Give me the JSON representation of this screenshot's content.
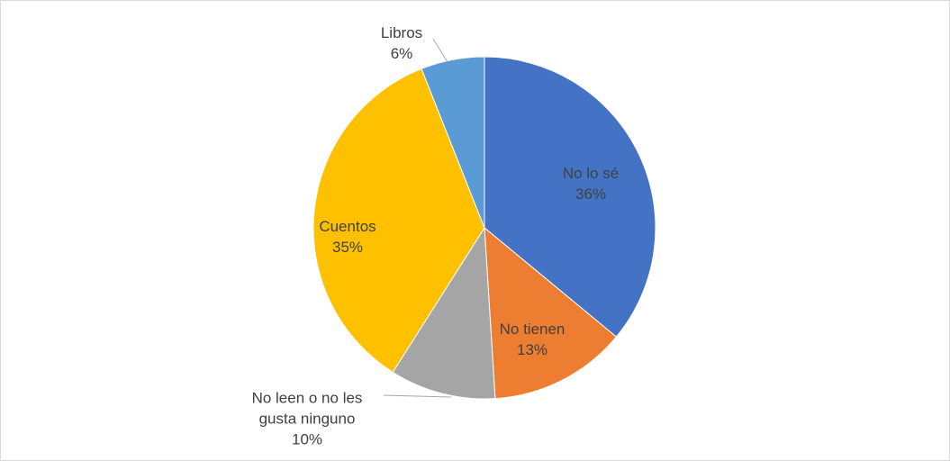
{
  "chart_data": {
    "type": "pie",
    "categories": [
      "No lo sé",
      "No tienen",
      "No leen o no les gusta ninguno",
      "Cuentos",
      "Libros"
    ],
    "values": [
      36,
      13,
      10,
      35,
      6
    ],
    "value_labels": [
      "36%",
      "13%",
      "10%",
      "35%",
      "6%"
    ],
    "colors": [
      "#4472c4",
      "#ed7d31",
      "#a5a5a5",
      "#ffc000",
      "#5b9bd5"
    ]
  }
}
